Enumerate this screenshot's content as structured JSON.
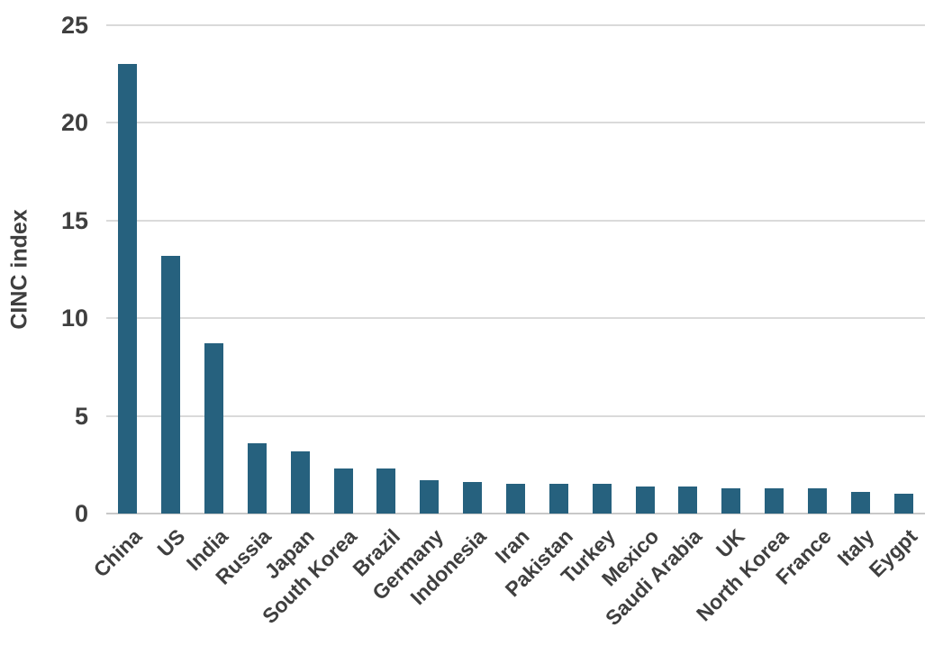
{
  "chart_data": {
    "type": "bar",
    "title": "",
    "xlabel": "",
    "ylabel": "CINC index",
    "ylim": [
      0,
      25
    ],
    "yticks": [
      0,
      5,
      10,
      15,
      20,
      25
    ],
    "grid": true,
    "legend": false,
    "bar_color": "#26617e",
    "background_color": "#ffffff",
    "gridline_color": "#dadada",
    "text_color": "#3f3f3f",
    "categories": [
      "China",
      "US",
      "India",
      "Russia",
      "Japan",
      "South Korea",
      "Brazil",
      "Germany",
      "Indonesia",
      "Iran",
      "Pakistan",
      "Turkey",
      "Mexico",
      "Saudi Arabia",
      "UK",
      "North Korea",
      "France",
      "Italy",
      "Eygpt"
    ],
    "values": [
      23.0,
      13.2,
      8.7,
      3.6,
      3.2,
      2.3,
      2.3,
      1.7,
      1.6,
      1.5,
      1.5,
      1.5,
      1.4,
      1.4,
      1.3,
      1.3,
      1.3,
      1.1,
      1.0
    ]
  }
}
